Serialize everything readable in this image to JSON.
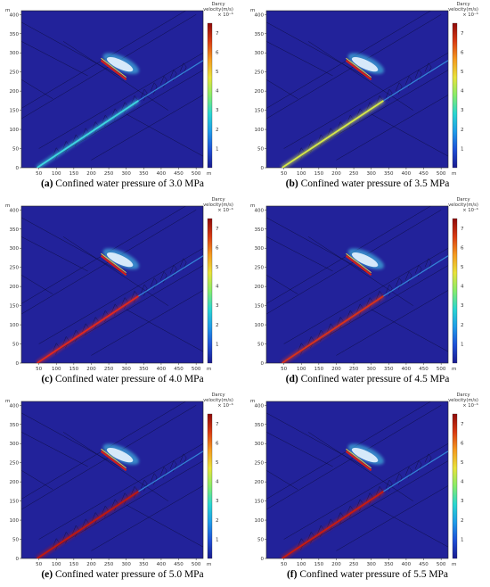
{
  "colorbar": {
    "title_line1": "Darcy",
    "title_line2": "velocity(m/s)",
    "multiplier": "× 10⁻⁶",
    "ticks": [
      "1",
      "2",
      "3",
      "4",
      "5",
      "6",
      "7"
    ],
    "colors": [
      "#1a1a8e",
      "#1e4fd6",
      "#1f9be8",
      "#2ad6d0",
      "#86ec6a",
      "#e8e23a",
      "#f59a1f",
      "#d83a12",
      "#8e0a0a"
    ]
  },
  "axes": {
    "y_unit": "m",
    "x_unit": "m",
    "x_ticks": [
      "50",
      "100",
      "150",
      "200",
      "250",
      "300",
      "350",
      "400",
      "450",
      "500"
    ],
    "y_ticks": [
      "0",
      "50",
      "100",
      "150",
      "200",
      "250",
      "300",
      "350",
      "400"
    ]
  },
  "chart_data": [
    {
      "type": "heatmap",
      "id": "a",
      "label": "(a)",
      "caption": "Confined water pressure of 3.0 MPa",
      "pressure": 3.0,
      "xlim": [
        0,
        520
      ],
      "ylim": [
        0,
        410
      ],
      "colorbar_range": [
        0,
        7.5
      ],
      "fault_color": "#3ed7e0"
    },
    {
      "type": "heatmap",
      "id": "b",
      "label": "(b)",
      "caption": "Confined water pressure of 3.5 MPa",
      "pressure": 3.5,
      "xlim": [
        0,
        520
      ],
      "ylim": [
        0,
        410
      ],
      "colorbar_range": [
        0,
        7.5
      ],
      "fault_color": "#d6e84a"
    },
    {
      "type": "heatmap",
      "id": "c",
      "label": "(c)",
      "caption": "Confined water pressure of 4.0 MPa",
      "pressure": 4.0,
      "xlim": [
        0,
        520
      ],
      "ylim": [
        0,
        410
      ],
      "colorbar_range": [
        0,
        7.5
      ],
      "fault_color": "#e0281e"
    },
    {
      "type": "heatmap",
      "id": "d",
      "label": "(d)",
      "caption": "Confined water pressure of 4.5 MPa",
      "pressure": 4.5,
      "xlim": [
        0,
        520
      ],
      "ylim": [
        0,
        410
      ],
      "colorbar_range": [
        0,
        7.5
      ],
      "fault_color": "#d8321a"
    },
    {
      "type": "heatmap",
      "id": "e",
      "label": "(e)",
      "caption": "Confined water pressure of 5.0 MPa",
      "pressure": 5.0,
      "xlim": [
        0,
        520
      ],
      "ylim": [
        0,
        410
      ],
      "colorbar_range": [
        0,
        7.5
      ],
      "fault_color": "#c0180e"
    },
    {
      "type": "heatmap",
      "id": "f",
      "label": "(f)",
      "caption": "Confined water pressure of 5.5 MPa",
      "pressure": 5.5,
      "xlim": [
        0,
        520
      ],
      "ylim": [
        0,
        410
      ],
      "colorbar_range": [
        0,
        7.5
      ],
      "fault_color": "#c81c10"
    }
  ]
}
